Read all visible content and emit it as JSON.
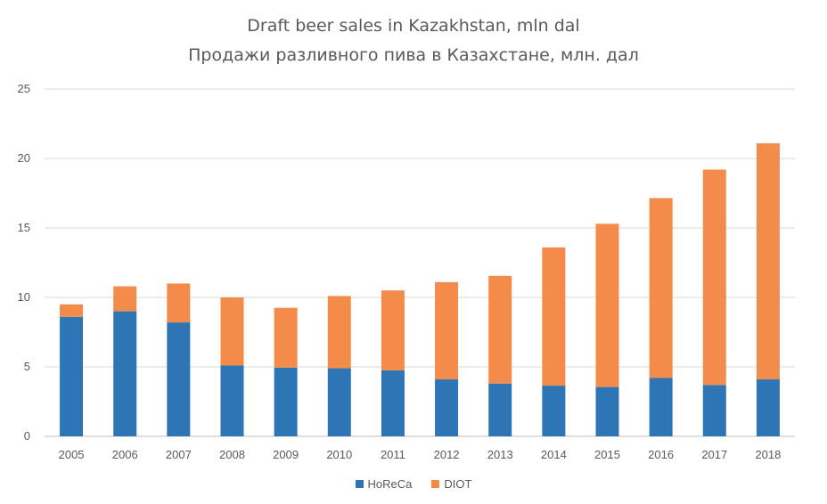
{
  "chart_data": {
    "type": "bar",
    "stacked": true,
    "title": "Draft beer sales in Kazakhstan, mln dal",
    "subtitle": "Продажи разливного пива в Казахстане, млн. дал",
    "categories": [
      "2005",
      "2006",
      "2007",
      "2008",
      "2009",
      "2010",
      "2011",
      "2012",
      "2013",
      "2014",
      "2015",
      "2016",
      "2017",
      "2018"
    ],
    "series": [
      {
        "name": "HoReCa",
        "color": "#2e75b6",
        "values": [
          8.6,
          9.0,
          8.2,
          5.1,
          4.95,
          4.9,
          4.75,
          4.1,
          3.8,
          3.65,
          3.55,
          4.2,
          3.7,
          4.1
        ]
      },
      {
        "name": "DIOT",
        "color": "#f38b4a",
        "values": [
          0.9,
          1.8,
          2.8,
          4.9,
          4.3,
          5.2,
          5.75,
          7.0,
          7.75,
          9.95,
          11.75,
          12.95,
          15.5,
          17.0
        ]
      }
    ],
    "yticks": [
      "0",
      "5",
      "10",
      "15",
      "20",
      "25"
    ],
    "ylim": [
      0,
      25
    ],
    "grid": true,
    "legend": "bottom"
  }
}
